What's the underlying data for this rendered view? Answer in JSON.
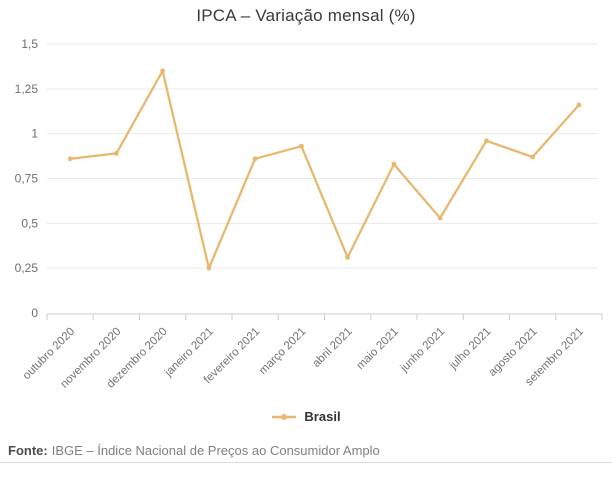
{
  "title": "IPCA – Variação mensal (%)",
  "legend": {
    "label": "Brasil"
  },
  "footer": {
    "prefix": "Fonte:",
    "text": "IBGE – Índice Nacional de Preços ao Consumidor Amplo"
  },
  "colors": {
    "line": "#E8B86E",
    "grid": "#E9E9E9",
    "axis": "#CCCCCC",
    "y_label": "#6E6E6E",
    "x_label": "#737373"
  },
  "chart_data": {
    "type": "line",
    "title": "IPCA – Variação mensal (%)",
    "categories": [
      "outubro 2020",
      "novembro 2020",
      "dezembro 2020",
      "janeiro 2021",
      "fevereiro 2021",
      "março 2021",
      "abril 2021",
      "maio 2021",
      "junho 2021",
      "julho 2021",
      "agosto 2021",
      "setembro 2021"
    ],
    "series": [
      {
        "name": "Brasil",
        "values": [
          0.86,
          0.89,
          1.35,
          0.25,
          0.86,
          0.93,
          0.31,
          0.83,
          0.53,
          0.96,
          0.87,
          1.16
        ]
      }
    ],
    "xlabel": "",
    "ylabel": "",
    "ylim": [
      0,
      1.5
    ],
    "ytick_step": 0.25,
    "ytick_labels": [
      "0",
      "0,25",
      "0,5",
      "0,75",
      "1",
      "1,25",
      "1,5"
    ],
    "grid": "horizontal",
    "legend_position": "bottom",
    "marker": "circle"
  }
}
